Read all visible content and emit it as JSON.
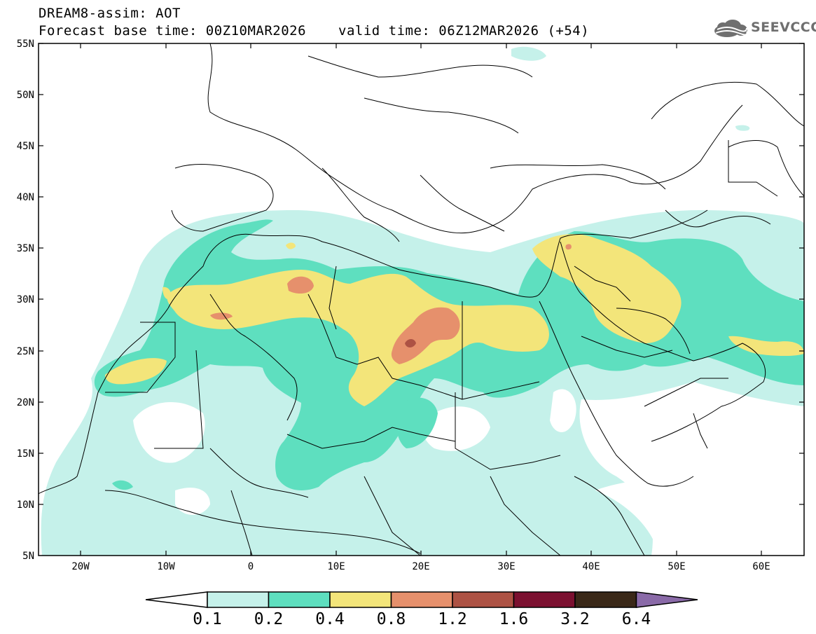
{
  "header": {
    "title": "DREAM8-assim: AOT",
    "base_time": "Forecast base time: 00Z10MAR2026",
    "valid_time": "valid time: 06Z12MAR2026 (+54)",
    "logo_text": "SEEVCCC"
  },
  "map": {
    "lon_range": [
      -25,
      65
    ],
    "lat_range": [
      5,
      55
    ],
    "lat_labels": [
      "55N",
      "50N",
      "45N",
      "40N",
      "35N",
      "30N",
      "25N",
      "20N",
      "15N",
      "10N",
      "5N"
    ],
    "lon_labels": [
      "20W",
      "10W",
      "0",
      "10E",
      "20E",
      "30E",
      "40E",
      "50E",
      "60E"
    ]
  },
  "colorbar": {
    "levels": [
      "0.1",
      "0.2",
      "0.4",
      "0.8",
      "1.2",
      "1.6",
      "3.2",
      "6.4"
    ],
    "colors": {
      "c1": "#c5f1ea",
      "c2": "#5edfbf",
      "c3": "#f3e57a",
      "c4": "#e6906c",
      "c5": "#ad5244",
      "c6": "#7b1030",
      "c7": "#3a2818",
      "c8": "#8a6aa8"
    }
  }
}
